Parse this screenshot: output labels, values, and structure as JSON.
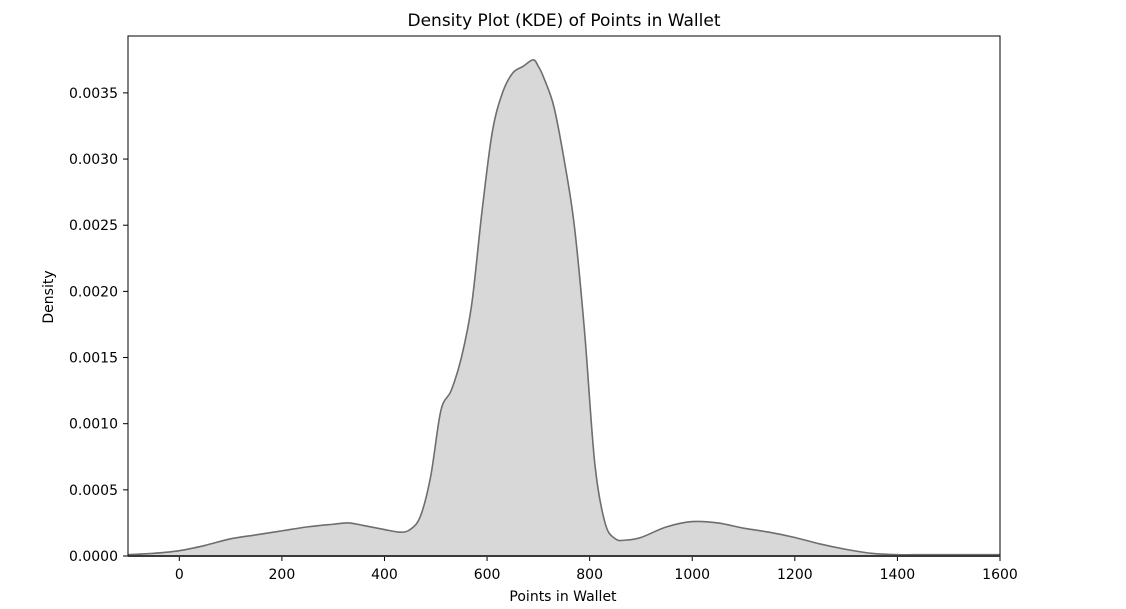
{
  "chart_data": {
    "type": "area",
    "title": "Density Plot (KDE) of Points in Wallet",
    "xlabel": "Points in Wallet",
    "ylabel": "Density",
    "xlim": [
      -100,
      1600
    ],
    "ylim": [
      0,
      0.00393
    ],
    "xticks": [
      0,
      200,
      400,
      600,
      800,
      1000,
      1200,
      1400,
      1600
    ],
    "yticks": [
      0.0,
      0.0005,
      0.001,
      0.0015,
      0.002,
      0.0025,
      0.003,
      0.0035
    ],
    "ytick_labels": [
      "0.0000",
      "0.0005",
      "0.0010",
      "0.0015",
      "0.0020",
      "0.0025",
      "0.0030",
      "0.0035"
    ],
    "grid": false,
    "fill_color": "#d8d8d8",
    "line_color": "#6e6e6e",
    "series": [
      {
        "x": [
          -100,
          -50,
          0,
          50,
          100,
          150,
          200,
          250,
          300,
          330,
          360,
          400,
          430,
          450,
          470,
          490,
          510,
          530,
          550,
          570,
          590,
          610,
          630,
          650,
          670,
          690,
          700,
          710,
          730,
          750,
          770,
          790,
          810,
          830,
          850,
          870,
          900,
          950,
          1000,
          1050,
          1100,
          1150,
          1200,
          1250,
          1300,
          1350,
          1400,
          1450,
          1500,
          1550,
          1600
        ],
        "y": [
          1e-05,
          2e-05,
          4e-05,
          8e-05,
          0.00013,
          0.00016,
          0.00019,
          0.00022,
          0.00024,
          0.00025,
          0.00023,
          0.0002,
          0.00018,
          0.0002,
          0.0003,
          0.0006,
          0.0011,
          0.00125,
          0.0015,
          0.0019,
          0.0026,
          0.0032,
          0.0035,
          0.00365,
          0.0037,
          0.00375,
          0.0037,
          0.00362,
          0.0034,
          0.003,
          0.0025,
          0.0017,
          0.0007,
          0.00025,
          0.00013,
          0.00012,
          0.00014,
          0.00022,
          0.00026,
          0.00025,
          0.00021,
          0.00018,
          0.00014,
          9e-05,
          5e-05,
          2e-05,
          1e-05,
          1e-05,
          1e-05,
          1e-05,
          1e-05
        ]
      }
    ]
  }
}
